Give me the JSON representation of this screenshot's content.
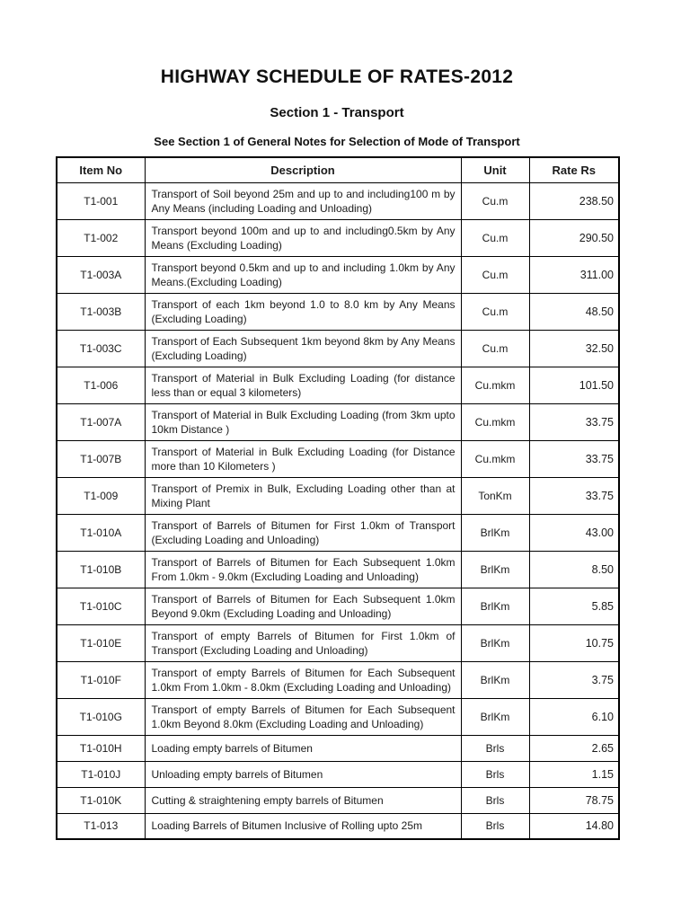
{
  "page": {
    "title": "HIGHWAY SCHEDULE OF RATES-2012",
    "section": "Section 1 - Transport",
    "note": "See Section 1 of General Notes for Selection of Mode of Transport"
  },
  "colors": {
    "page_bg": "#ffffff",
    "text": "#1b1b1b",
    "border": "#000000"
  },
  "table": {
    "columns": [
      "Item No",
      "Description",
      "Unit",
      "Rate Rs"
    ],
    "rows": [
      {
        "item": "T1-001",
        "description": "Transport of Soil beyond  25m and up to and including100 m by Any Means (including Loading and Unloading)",
        "unit": "Cu.m",
        "rate": "238.50"
      },
      {
        "item": "T1-002",
        "description": "Transport beyond  100m and up to and including0.5km by Any Means (Excluding Loading)",
        "unit": "Cu.m",
        "rate": "290.50"
      },
      {
        "item": "T1-003A",
        "description": "Transport beyond  0.5km and up to and including 1.0km by Any Means.(Excluding Loading)",
        "unit": "Cu.m",
        "rate": "311.00"
      },
      {
        "item": "T1-003B",
        "description": "Transport of each 1km beyond 1.0 to 8.0 km by Any Means (Excluding Loading)",
        "unit": "Cu.m",
        "rate": "48.50"
      },
      {
        "item": "T1-003C",
        "description": "Transport of Each Subsequent 1km beyond 8km by Any Means (Excluding Loading)",
        "unit": "Cu.m",
        "rate": "32.50"
      },
      {
        "item": "T1-006",
        "description": "Transport of Material in Bulk Excluding Loading (for distance less than or equal 3 kilometers)",
        "unit": "Cu.mkm",
        "rate": "101.50"
      },
      {
        "item": "T1-007A",
        "description": "Transport of Material in Bulk Excluding Loading (from 3km upto 10km Distance )",
        "unit": "Cu.mkm",
        "rate": "33.75"
      },
      {
        "item": "T1-007B",
        "description": "Transport of Material in Bulk Excluding Loading (for Distance more than 10 Kilometers )",
        "unit": "Cu.mkm",
        "rate": "33.75"
      },
      {
        "item": "T1-009",
        "description": "Transport of Premix in Bulk, Excluding Loading other than at Mixing Plant",
        "unit": "TonKm",
        "rate": "33.75"
      },
      {
        "item": "T1-010A",
        "description": "Transport of Barrels of Bitumen for First 1.0km of Transport (Excluding Loading and Unloading)",
        "unit": "BrlKm",
        "rate": "43.00"
      },
      {
        "item": "T1-010B",
        "description": "Transport of Barrels of Bitumen for Each Subsequent 1.0km From 1.0km - 9.0km (Excluding Loading and Unloading)",
        "unit": "BrlKm",
        "rate": "8.50"
      },
      {
        "item": "T1-010C",
        "description": "Transport of Barrels of Bitumen for Each Subsequent 1.0km Beyond  9.0km (Excluding Loading and Unloading)",
        "unit": "BrlKm",
        "rate": "5.85"
      },
      {
        "item": "T1-010E",
        "description": "Transport of empty Barrels of Bitumen for First 1.0km of Transport (Excluding Loading and Unloading)",
        "unit": "BrlKm",
        "rate": "10.75"
      },
      {
        "item": "T1-010F",
        "description": "Transport of empty Barrels of Bitumen for Each Subsequent 1.0km From  1.0km - 8.0km (Excluding Loading and Unloading)",
        "unit": "BrlKm",
        "rate": "3.75"
      },
      {
        "item": "T1-010G",
        "description": "Transport of empty Barrels of Bitumen for Each Subsequent 1.0km Beyond  8.0km (Excluding Loading and Unloading)",
        "unit": "BrlKm",
        "rate": "6.10"
      },
      {
        "item": "T1-010H",
        "description": "Loading empty barrels of Bitumen",
        "unit": "Brls",
        "rate": "2.65"
      },
      {
        "item": "T1-010J",
        "description": "Unloading empty barrels of Bitumen",
        "unit": "Brls",
        "rate": "1.15"
      },
      {
        "item": "T1-010K",
        "description": "Cutting & straightening  empty barrels of Bitumen",
        "unit": "Brls",
        "rate": "78.75"
      },
      {
        "item": "T1-013",
        "description": "Loading Barrels of Bitumen Inclusive of Rolling upto 25m",
        "unit": "Brls",
        "rate": "14.80"
      }
    ]
  }
}
